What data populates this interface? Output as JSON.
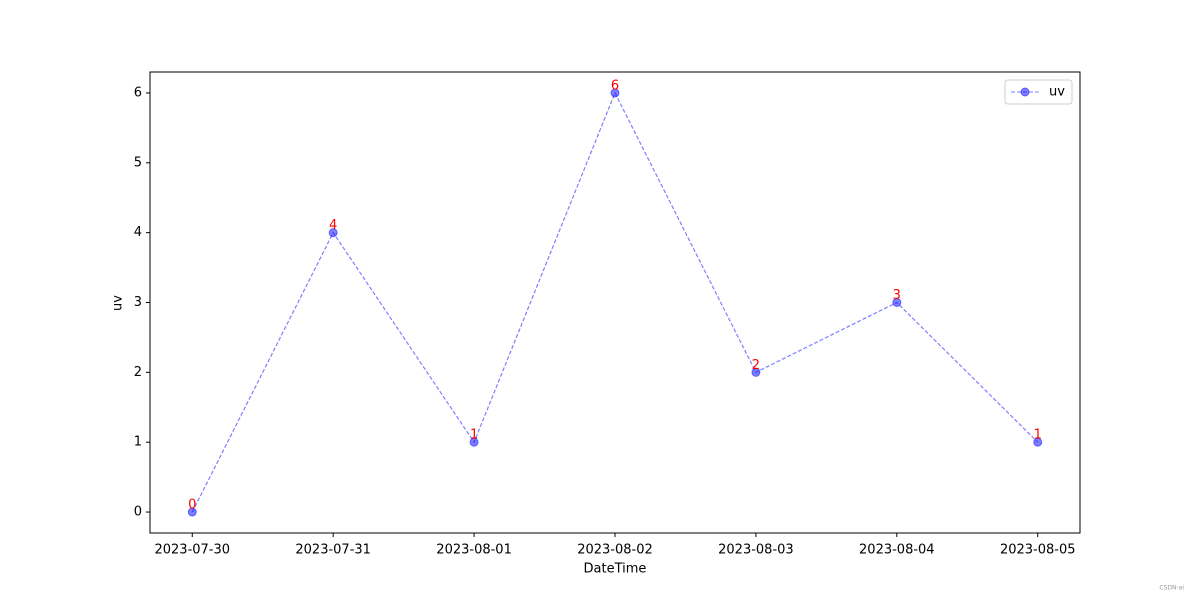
{
  "chart_data": {
    "type": "line",
    "xlabel": "DateTime",
    "ylabel": "uv",
    "categories": [
      "2023-07-30",
      "2023-07-31",
      "2023-08-01",
      "2023-08-02",
      "2023-08-03",
      "2023-08-04",
      "2023-08-05"
    ],
    "series": [
      {
        "name": "uv",
        "color": "#0000ff",
        "values": [
          0,
          4,
          1,
          6,
          2,
          3,
          1
        ]
      }
    ],
    "label_color": "#ff0000",
    "ylim": [
      -0.3,
      6.3
    ],
    "yticks": [
      0,
      1,
      2,
      3,
      4,
      5,
      6
    ],
    "grid": false,
    "legend": "upper right",
    "watermark": "CSDN-ai"
  }
}
